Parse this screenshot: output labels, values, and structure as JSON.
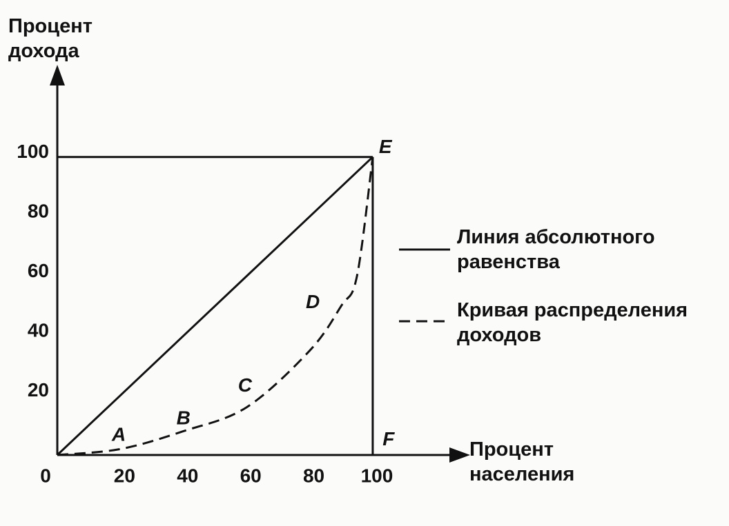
{
  "chart_data": {
    "type": "line",
    "y_label": "Процент дохода",
    "x_label": "Процент населения",
    "x": [
      0,
      20,
      40,
      60,
      80,
      90,
      95,
      100
    ],
    "series": [
      {
        "name": "Линия абсолютного равенства",
        "color": "#111111",
        "style": "solid",
        "values": [
          0,
          20,
          40,
          60,
          80,
          90,
          95,
          100
        ]
      },
      {
        "name": "Кривая распределения доходов",
        "color": "#111111",
        "style": "dashed",
        "values": [
          0,
          2,
          8,
          16,
          35,
          50,
          60,
          100
        ]
      }
    ],
    "xlim": [
      0,
      130
    ],
    "ylim": [
      0,
      130
    ],
    "xticks": [
      0,
      20,
      40,
      60,
      80,
      100
    ],
    "yticks": [
      20,
      40,
      60,
      80,
      100
    ],
    "grid": false,
    "legend": "right",
    "annotations": [
      {
        "text": "A",
        "x": 19.5,
        "y": 6.5
      },
      {
        "text": "B",
        "x": 40,
        "y": 12
      },
      {
        "text": "C",
        "x": 59.5,
        "y": 23
      },
      {
        "text": "D",
        "x": 81,
        "y": 51
      },
      {
        "text": "E",
        "x": 104,
        "y": 103
      },
      {
        "text": "F",
        "x": 105,
        "y": 5
      }
    ]
  }
}
